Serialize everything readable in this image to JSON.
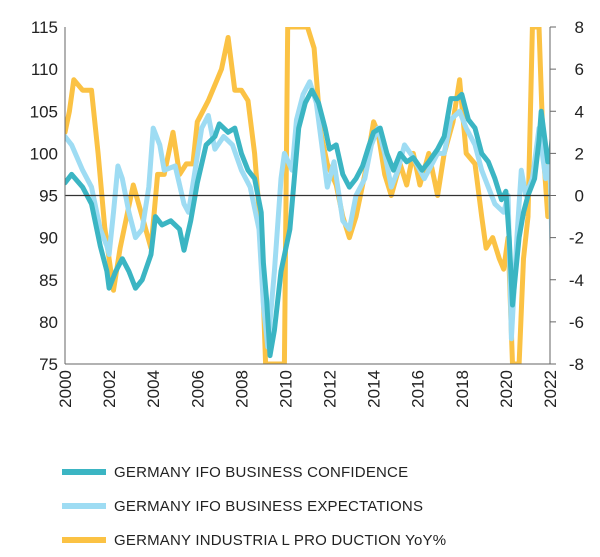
{
  "chart_data": {
    "type": "line",
    "title": "",
    "xlabel": "",
    "x_ticks": [
      "2000",
      "2002",
      "2004",
      "2006",
      "2008",
      "2010",
      "2012",
      "2014",
      "2016",
      "2018",
      "2020",
      "2022"
    ],
    "xlim": [
      2000,
      2022
    ],
    "left_axis": {
      "ylim": [
        75,
        115
      ],
      "ticks": [
        "115",
        "110",
        "105",
        "100",
        "95",
        "90",
        "85",
        "80",
        "75"
      ]
    },
    "right_axis": {
      "ylim": [
        -8,
        8
      ],
      "ticks": [
        "8",
        "6",
        "4",
        "2",
        "0",
        "-2",
        "-4",
        "-6",
        "-8"
      ]
    },
    "reference_line": {
      "axis": "right",
      "value": 0
    },
    "legend_placement": "bottom",
    "series": [
      {
        "name": "GERMANY IFO BUSINESS  CONFIDENCE",
        "axis": "left",
        "color": "#3bb5c3",
        "x": [
          2000.0,
          2000.3,
          2000.8,
          2001.2,
          2001.6,
          2001.9,
          2002.0,
          2002.3,
          2002.6,
          2002.9,
          2003.2,
          2003.5,
          2003.9,
          2004.1,
          2004.4,
          2004.8,
          2005.2,
          2005.4,
          2005.7,
          2006.0,
          2006.4,
          2006.8,
          2007.0,
          2007.4,
          2007.7,
          2008.0,
          2008.3,
          2008.6,
          2008.9,
          2009.0,
          2009.15,
          2009.3,
          2009.5,
          2009.8,
          2010.2,
          2010.4,
          2010.6,
          2010.9,
          2011.2,
          2011.5,
          2011.8,
          2012.0,
          2012.3,
          2012.6,
          2012.9,
          2013.2,
          2013.5,
          2013.8,
          2014.0,
          2014.3,
          2014.6,
          2014.9,
          2015.2,
          2015.5,
          2015.8,
          2016.2,
          2016.5,
          2016.9,
          2017.2,
          2017.5,
          2017.8,
          2018.0,
          2018.3,
          2018.6,
          2018.9,
          2019.2,
          2019.5,
          2019.8,
          2020.0,
          2020.15,
          2020.3,
          2020.45,
          2020.6,
          2020.8,
          2021.0,
          2021.3,
          2021.5,
          2021.6,
          2021.9,
          2022.0,
          2022.1,
          2022.2
        ],
        "y": [
          96.5,
          97.5,
          96,
          94,
          89,
          86,
          84,
          86,
          87.5,
          86,
          84,
          85,
          88,
          92.5,
          91.5,
          92,
          91,
          88.5,
          92,
          96.5,
          101,
          102,
          103.5,
          102.5,
          103,
          100,
          98,
          97,
          93,
          87,
          82.5,
          76,
          79,
          86,
          91,
          97,
          103,
          106,
          107.5,
          106,
          103,
          100.5,
          101,
          97.5,
          96,
          97,
          98.5,
          101,
          102.5,
          103,
          100,
          98,
          100,
          99,
          99.5,
          98,
          99,
          100.5,
          102,
          106.5,
          106.5,
          107,
          104,
          103,
          100,
          99,
          97,
          94.5,
          95.5,
          90,
          82,
          86,
          90,
          93,
          95,
          97,
          101.5,
          105,
          99,
          99,
          102,
          93
        ]
      },
      {
        "name": "GERMANY IFO BUSINESS  EXPECTATIONS",
        "axis": "left",
        "color": "#9edcf3",
        "x": [
          2000.0,
          2000.3,
          2000.8,
          2001.2,
          2001.6,
          2001.9,
          2002.0,
          2002.2,
          2002.4,
          2002.6,
          2002.9,
          2003.2,
          2003.5,
          2003.8,
          2004.0,
          2004.3,
          2004.5,
          2005.0,
          2005.4,
          2005.6,
          2005.9,
          2006.2,
          2006.5,
          2006.8,
          2007.2,
          2007.6,
          2008.0,
          2008.4,
          2008.8,
          2009.0,
          2009.2,
          2009.5,
          2009.8,
          2009.95,
          2010.3,
          2010.5,
          2010.8,
          2011.1,
          2011.4,
          2011.7,
          2011.9,
          2012.2,
          2012.6,
          2012.9,
          2013.2,
          2013.6,
          2013.9,
          2014.2,
          2014.5,
          2014.8,
          2015.1,
          2015.4,
          2015.8,
          2016.3,
          2016.7,
          2016.9,
          2017.2,
          2017.5,
          2017.9,
          2018.2,
          2018.6,
          2018.9,
          2019.2,
          2019.5,
          2019.9,
          2020.1,
          2020.25,
          2020.5,
          2020.7,
          2020.9,
          2021.2,
          2021.5,
          2021.8,
          2022.0,
          2022.15,
          2022.25
        ],
        "y": [
          102,
          101,
          98,
          96,
          91,
          89,
          88,
          93,
          98.5,
          97,
          93,
          90,
          91,
          96,
          103,
          101,
          98,
          98.5,
          94,
          93,
          98,
          103,
          104.5,
          100.5,
          102,
          101,
          98,
          96,
          91,
          82,
          77,
          86,
          97,
          100,
          98,
          104,
          107,
          108.5,
          106,
          100,
          96,
          99,
          92,
          91,
          95,
          97,
          101,
          103,
          100,
          96,
          98,
          101,
          99.5,
          97,
          99,
          100,
          100,
          104,
          105,
          103,
          101,
          98,
          96,
          94,
          93,
          95,
          78,
          90,
          98,
          95,
          97,
          103,
          97,
          99,
          82,
          85
        ]
      },
      {
        "name": "GERMANY INDUSTRIA L PRO DUCTION YoY%",
        "axis": "right",
        "color": "#fbc244",
        "x": [
          2000.0,
          2000.2,
          2000.4,
          2000.8,
          2001.2,
          2001.5,
          2001.8,
          2002.0,
          2002.2,
          2002.5,
          2002.9,
          2003.1,
          2003.5,
          2003.9,
          2004.2,
          2004.5,
          2004.9,
          2005.2,
          2005.5,
          2005.8,
          2006.0,
          2006.5,
          2006.9,
          2007.1,
          2007.4,
          2007.7,
          2008.0,
          2008.3,
          2008.6,
          2008.9,
          2009.1,
          2009.5,
          2009.95,
          2010.1,
          2011.0,
          2011.3,
          2011.6,
          2011.9,
          2012.3,
          2012.6,
          2012.9,
          2013.2,
          2013.6,
          2014.0,
          2014.2,
          2014.5,
          2014.8,
          2015.2,
          2015.5,
          2015.8,
          2016.1,
          2016.5,
          2016.9,
          2017.2,
          2017.6,
          2017.9,
          2018.2,
          2018.6,
          2018.9,
          2019.1,
          2019.4,
          2019.7,
          2019.9,
          2020.1,
          2020.3,
          2020.6,
          2020.8,
          2021.0,
          2021.2,
          2021.5,
          2021.7,
          2021.9,
          2022.0,
          2022.2
        ],
        "y": [
          3,
          4,
          5.5,
          5,
          5,
          2,
          -1.5,
          -3,
          -4.5,
          -2.5,
          -0.5,
          0.5,
          -1,
          -2.5,
          1,
          1,
          3,
          1,
          1.5,
          1.5,
          3.5,
          4.5,
          5.5,
          6,
          7.5,
          5,
          5,
          4.5,
          2,
          -2,
          -8,
          -8,
          -8,
          8,
          8,
          7,
          3,
          1.5,
          0.5,
          -1,
          -2,
          -1,
          1,
          3.5,
          3,
          1,
          0,
          1.5,
          0.5,
          2,
          0.5,
          2,
          0,
          2,
          3.5,
          5.5,
          2,
          1.5,
          -1,
          -2.5,
          -2,
          -3,
          -3.5,
          -2,
          -8,
          -8,
          -3,
          -1,
          8,
          8,
          2,
          -1,
          0,
          -3
        ]
      }
    ]
  }
}
